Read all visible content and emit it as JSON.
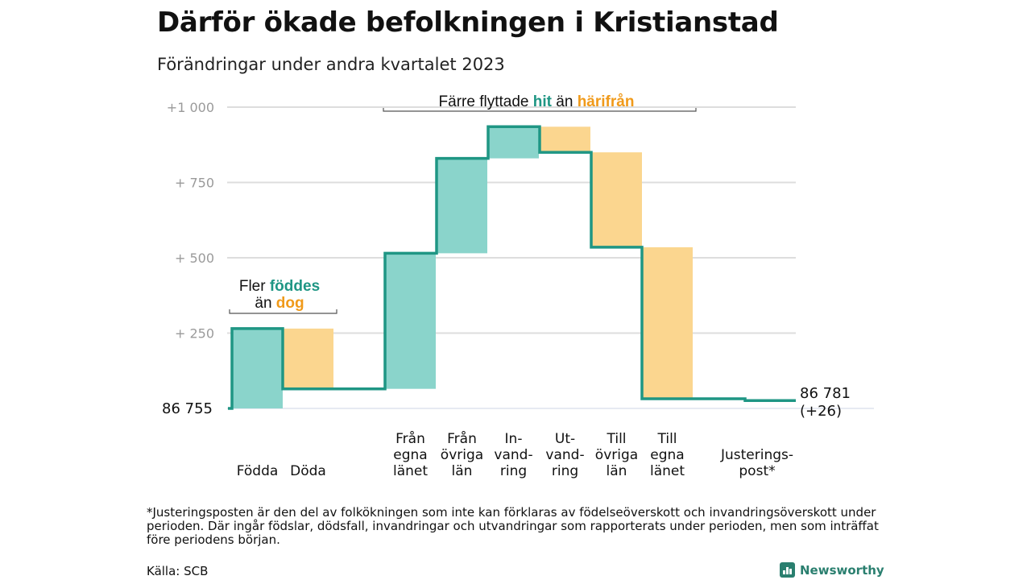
{
  "header": {
    "title": "Därför ökade befolkningen i Kristianstad",
    "subtitle": "Förändringar under andra kvartalet 2023"
  },
  "chart_data": {
    "type": "waterfall",
    "start": {
      "label": "86 755",
      "value": 86755
    },
    "end": {
      "label_lines": [
        "86 781",
        "(+26)"
      ],
      "value": 86781,
      "change": 26
    },
    "yticks": [
      {
        "value": 1000,
        "label": "+1   000"
      },
      {
        "value": 750,
        "label": "+   750"
      },
      {
        "value": 500,
        "label": "+   500"
      },
      {
        "value": 250,
        "label": "+   250"
      }
    ],
    "ylim": [
      0,
      1000
    ],
    "grid": true,
    "steps": [
      {
        "label_lines": [
          "Födda"
        ],
        "from": 0,
        "to": 265,
        "kind": "in"
      },
      {
        "label_lines": [
          "Döda"
        ],
        "from": 265,
        "to": 65,
        "kind": "out"
      },
      {
        "label_lines": [
          "Från",
          "egna",
          "länet"
        ],
        "from": 65,
        "to": 515,
        "kind": "in"
      },
      {
        "label_lines": [
          "Från",
          "övriga",
          "län"
        ],
        "from": 515,
        "to": 830,
        "kind": "in"
      },
      {
        "label_lines": [
          "In-",
          "vand-",
          "ring"
        ],
        "from": 830,
        "to": 935,
        "kind": "in"
      },
      {
        "label_lines": [
          "Ut-",
          "vand-",
          "ring"
        ],
        "from": 935,
        "to": 850,
        "kind": "out"
      },
      {
        "label_lines": [
          "Till",
          "övriga",
          "län"
        ],
        "from": 850,
        "to": 535,
        "kind": "out"
      },
      {
        "label_lines": [
          "Till",
          "egna",
          "länet"
        ],
        "from": 535,
        "to": 32,
        "kind": "out"
      },
      {
        "label_lines": [
          "Justerings-",
          "post*"
        ],
        "from": 32,
        "to": 26,
        "kind": "adjust"
      }
    ],
    "annotations": [
      {
        "lines": [
          [
            {
              "text": "Fler ",
              "style": "plain"
            },
            {
              "text": "föddes",
              "style": "hit"
            }
          ],
          [
            {
              "text": "än ",
              "style": "plain"
            },
            {
              "text": "dog",
              "style": "out"
            }
          ]
        ]
      },
      {
        "lines": [
          [
            {
              "text": "Färre flyttade ",
              "style": "plain"
            },
            {
              "text": "hit",
              "style": "hit"
            },
            {
              "text": " än ",
              "style": "plain"
            },
            {
              "text": "härifrån",
              "style": "out"
            }
          ]
        ]
      }
    ],
    "colors": {
      "in_fill": "#8ad4cb",
      "out_fill": "#fbd68f",
      "line": "#1f9684",
      "hit_text": "#1f9684",
      "out_text": "#f09a1a",
      "grid": "#dddddd",
      "tick_text": "#9a9a9a"
    }
  },
  "footer": {
    "note": "*Justeringsposten är den del av folkökningen som inte kan förklaras av födelseöverskott och invandringsöverskott under perioden. Där ingår födslar, dödsfall, invandringar och utvandringar som rapporterats under perioden, men som inträffat före periodens början.",
    "source": "Källa: SCB",
    "brand": "Newsworthy"
  }
}
